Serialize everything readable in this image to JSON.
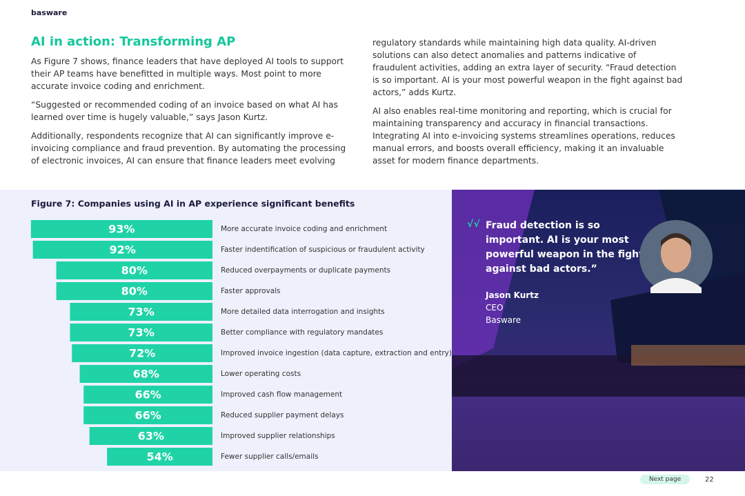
{
  "header": {
    "logo": "basware"
  },
  "section": {
    "title": "AI in action: Transforming AP",
    "left_paragraphs": [
      "As Figure 7 shows, finance leaders that have deployed AI tools to support their AP teams have benefitted in multiple ways. Most point to more accurate invoice coding and enrichment.",
      "“Suggested or recommended coding of an invoice based on what AI has learned over time is hugely valuable,” says Jason Kurtz.",
      "Additionally, respondents recognize that AI can significantly improve e-invoicing compliance and fraud prevention. By automating the processing of electronic invoices, AI can ensure that finance leaders meet evolving"
    ],
    "right_paragraphs": [
      "regulatory standards while maintaining high data quality. AI-driven solutions can also detect anomalies and patterns indicative of fraudulent activities, adding an extra layer of security. “Fraud detection is so important. AI is your most powerful weapon in the fight against bad actors,” adds Kurtz.",
      "AI also enables real-time monitoring and reporting, which is crucial for maintaining transparency and accuracy in financial transactions. Integrating AI into e-invoicing systems streamlines operations, reduces manual errors, and boosts overall efficiency, making it an invaluable asset for modern finance departments."
    ]
  },
  "chart_data": {
    "type": "bar",
    "orientation": "horizontal",
    "title": "Figure 7: Companies using AI in AP experience significant benefits",
    "categories": [
      "More accurate invoice coding and enrichment",
      "Faster indentification of suspicious or fraudulent activity",
      "Reduced overpayments or duplicate payments",
      "Faster approvals",
      "More detailed data interrogation and insights",
      "Better compliance with regulatory mandates",
      "Improved invoice ingestion (data capture, extraction and entry)",
      "Lower operating costs",
      "Improved cash flow management",
      "Reduced supplier payment delays",
      "Improved supplier relationships",
      "Fewer supplier calls/emails"
    ],
    "values": [
      93,
      92,
      80,
      80,
      73,
      73,
      72,
      68,
      66,
      66,
      63,
      54
    ],
    "value_labels": [
      "93%",
      "92%",
      "80%",
      "80%",
      "73%",
      "73%",
      "72%",
      "68%",
      "66%",
      "66%",
      "63%",
      "54%"
    ],
    "color": "#1fd3a7"
  },
  "quote": {
    "mark": "√√",
    "text": "Fraud detection is so important. AI is your most powerful weapon in the fight against bad actors.”",
    "name": "Jason Kurtz",
    "role": "CEO",
    "company": "Basware"
  },
  "footer": {
    "next": "Next page",
    "page": 22
  }
}
